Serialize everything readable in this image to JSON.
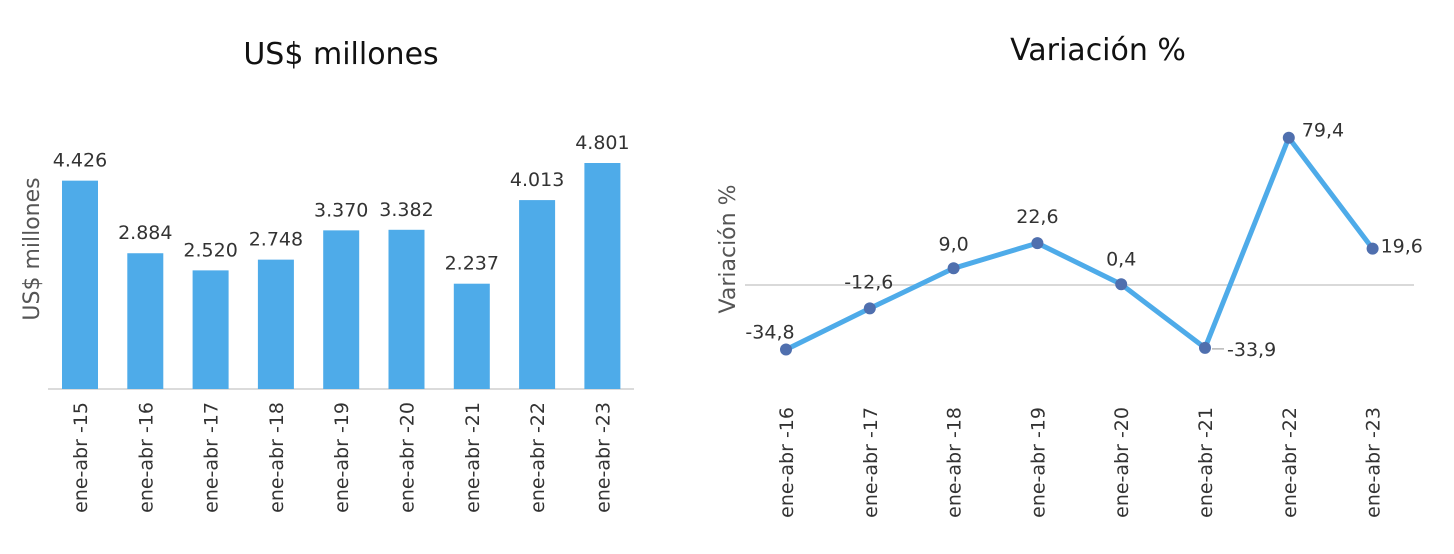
{
  "chart_data": [
    {
      "type": "bar",
      "title": "US$ millones",
      "ylabel": "US$ millones",
      "xlabel": "",
      "categories": [
        "ene-abr -15",
        "ene-abr -16",
        "ene-abr -17",
        "ene-abr -18",
        "ene-abr -19",
        "ene-abr -20",
        "ene-abr -21",
        "ene-abr -22",
        "ene-abr -23"
      ],
      "values": [
        4426,
        2884,
        2520,
        2748,
        3370,
        3382,
        2237,
        4013,
        4801
      ],
      "value_labels": [
        "4.426",
        "2.884",
        "2.520",
        "2.748",
        "3.370",
        "3.382",
        "2.237",
        "4.013",
        "4.801"
      ],
      "ylim": [
        0,
        4801
      ],
      "grid": false,
      "legend": "none",
      "bar_color": "#4EABE9"
    },
    {
      "type": "line",
      "title": "Variación %",
      "ylabel": "Variación %",
      "xlabel": "",
      "categories": [
        "ene-abr -16",
        "ene-abr -17",
        "ene-abr -18",
        "ene-abr -19",
        "ene-abr -20",
        "ene-abr -21",
        "ene-abr -22",
        "ene-abr -23"
      ],
      "values": [
        -34.8,
        -12.6,
        9.0,
        22.6,
        0.4,
        -33.9,
        79.4,
        19.6
      ],
      "value_labels": [
        "-34,8",
        "-12,6",
        "9,0",
        "22,6",
        "0,4",
        "-33,9",
        "79,4",
        "19,6"
      ],
      "ylim": [
        -40,
        80
      ],
      "grid": false,
      "legend": "none",
      "line_color": "#4EABE9",
      "marker_color": "#4F6FAE",
      "negative_label_color": "#E0301E",
      "positive_label_color": "#333333",
      "zero_line": true
    }
  ]
}
